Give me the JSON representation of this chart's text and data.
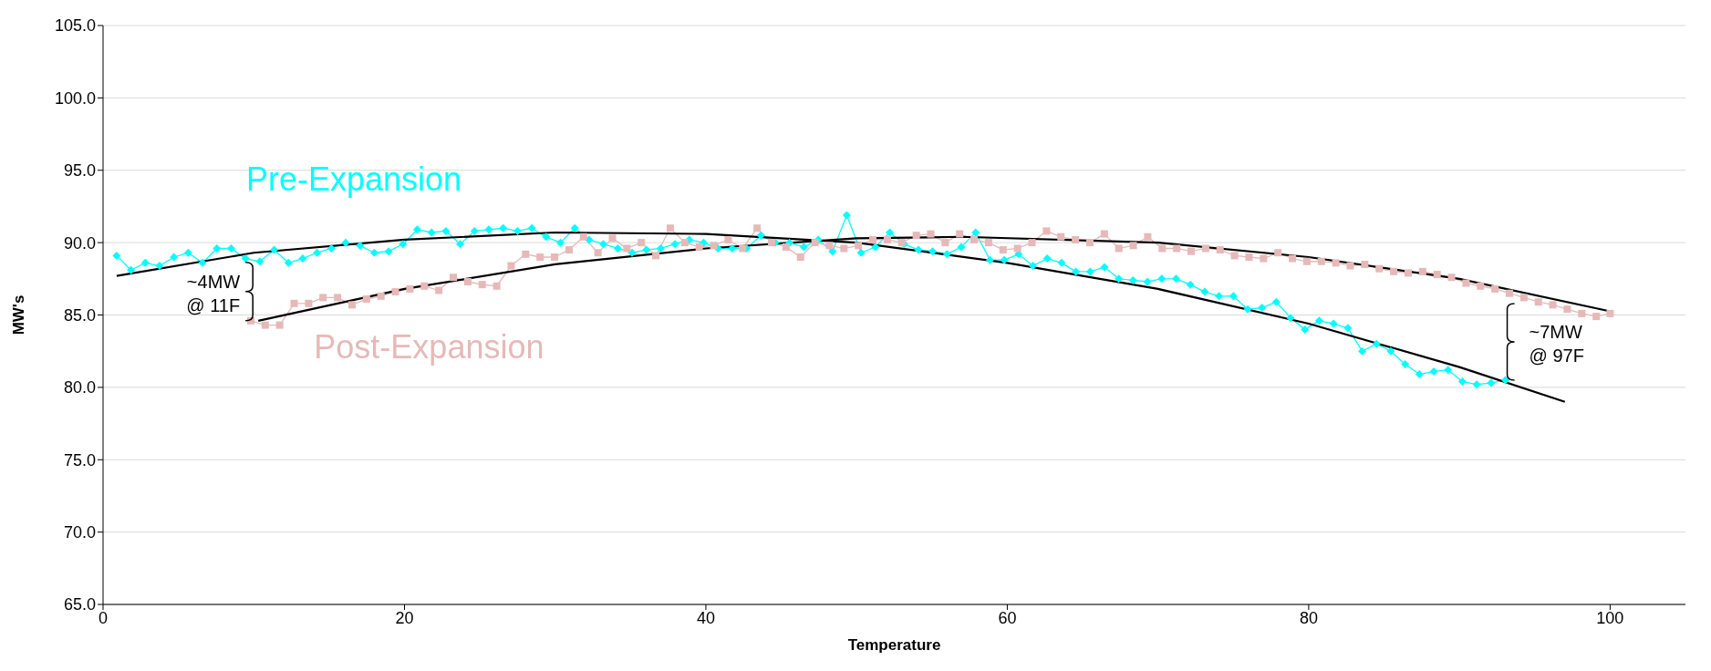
{
  "chart_data": {
    "type": "line",
    "xlabel": "Temperature",
    "ylabel": "MW's",
    "xlim": [
      0,
      105
    ],
    "xticks": [
      0,
      20,
      40,
      60,
      80,
      100
    ],
    "ylim": [
      65,
      105
    ],
    "yticks": [
      {
        "value": 65,
        "label": "65.0"
      },
      {
        "value": 70,
        "label": "70.0"
      },
      {
        "value": 75,
        "label": "75.0"
      },
      {
        "value": 80,
        "label": "80.0"
      },
      {
        "value": 85,
        "label": "85.0"
      },
      {
        "value": 90,
        "label": "90.0"
      },
      {
        "value": 95,
        "label": "95.0"
      },
      {
        "value": 100,
        "label": "100.0"
      },
      {
        "value": 105,
        "label": "105.0"
      }
    ],
    "grid": "y",
    "line_style": "solid",
    "annotations": [
      {
        "text": "~4MW @ 11F",
        "x": 10.3,
        "y": 84.6
      },
      {
        "text": "~7MW @ 97F",
        "x": 93.05,
        "y": 80.5
      }
    ],
    "series": [
      {
        "name": "Pre-Expansion",
        "color": "#00ffff",
        "marker": "diamond",
        "x": [
          0.9,
          1.85,
          2.8,
          3.75,
          4.7,
          5.65,
          6.6,
          7.55,
          8.5,
          9.45,
          10.4,
          11.35,
          12.3,
          13.25,
          14.2,
          15.15,
          16.1,
          17.05,
          18,
          18.95,
          19.9,
          20.85,
          21.8,
          22.75,
          23.7,
          24.65,
          25.6,
          26.55,
          27.5,
          28.45,
          29.4,
          30.35,
          31.3,
          32.25,
          33.2,
          34.15,
          35.1,
          36.05,
          37,
          37.95,
          38.9,
          39.85,
          40.8,
          41.75,
          42.7,
          43.65,
          44.6,
          45.55,
          46.5,
          47.45,
          48.4,
          49.35,
          50.3,
          51.25,
          52.2,
          53.15,
          54.1,
          55.05,
          56,
          56.95,
          57.9,
          58.85,
          59.8,
          60.75,
          61.7,
          62.65,
          63.6,
          64.55,
          65.5,
          66.45,
          67.4,
          68.35,
          69.3,
          70.25,
          71.2,
          72.15,
          73.1,
          74.05,
          75,
          75.95,
          76.9,
          77.85,
          78.8,
          79.75,
          80.7,
          81.65,
          82.6,
          83.55,
          84.5,
          85.45,
          86.4,
          87.35,
          88.3,
          89.25,
          90.2,
          91.15,
          92.1,
          93.05
        ],
        "values": [
          89.1,
          88.1,
          88.6,
          88.4,
          89.0,
          89.3,
          88.6,
          89.6,
          89.6,
          88.9,
          88.7,
          89.5,
          88.6,
          88.9,
          89.3,
          89.6,
          90.0,
          89.8,
          89.3,
          89.4,
          89.9,
          90.9,
          90.7,
          90.8,
          89.9,
          90.8,
          90.9,
          91.0,
          90.8,
          91.0,
          90.4,
          90.0,
          91.0,
          90.2,
          89.9,
          89.6,
          89.3,
          89.5,
          89.6,
          89.9,
          90.2,
          90.0,
          89.6,
          89.6,
          89.6,
          90.5,
          90.0,
          90.0,
          89.7,
          90.2,
          89.4,
          91.9,
          89.3,
          89.7,
          90.7,
          89.9,
          89.5,
          89.4,
          89.2,
          89.7,
          90.7,
          88.8,
          88.8,
          89.2,
          88.4,
          88.9,
          88.6,
          88.0,
          88.0,
          88.3,
          87.5,
          87.4,
          87.3,
          87.5,
          87.5,
          87.1,
          86.6,
          86.3,
          86.3,
          85.4,
          85.5,
          85.9,
          84.8,
          84.0,
          84.6,
          84.4,
          84.1,
          82.5,
          83.0,
          82.5,
          81.6,
          80.9,
          81.1,
          81.2,
          80.4,
          80.2,
          80.3,
          80.5
        ]
      },
      {
        "name": "Post-Expansion",
        "color": "#e6b9b8",
        "marker": "square",
        "x": [
          9.8,
          10.76,
          11.72,
          12.68,
          13.64,
          14.6,
          15.56,
          16.52,
          17.48,
          18.44,
          19.4,
          20.36,
          21.32,
          22.28,
          23.24,
          24.2,
          25.16,
          26.12,
          27.08,
          28.04,
          29,
          29.96,
          30.92,
          31.88,
          32.84,
          33.8,
          34.76,
          35.72,
          36.68,
          37.64,
          38.6,
          39.56,
          40.52,
          41.48,
          42.44,
          43.4,
          44.36,
          45.32,
          46.28,
          47.24,
          48.2,
          49.16,
          50.12,
          51.08,
          52.04,
          53,
          53.96,
          54.92,
          55.88,
          56.84,
          57.8,
          58.76,
          59.72,
          60.68,
          61.64,
          62.6,
          63.56,
          64.52,
          65.48,
          66.44,
          67.4,
          68.36,
          69.32,
          70.28,
          71.24,
          72.2,
          73.16,
          74.12,
          75.08,
          76.04,
          77,
          77.96,
          78.92,
          79.88,
          80.84,
          81.8,
          82.76,
          83.72,
          84.68,
          85.64,
          86.6,
          87.56,
          88.52,
          89.48,
          90.44,
          91.4,
          92.36,
          93.32,
          94.28,
          95.24,
          96.2,
          97.16,
          98.12,
          99.08,
          100
        ],
        "values": [
          84.6,
          84.3,
          84.3,
          85.8,
          85.8,
          86.2,
          86.2,
          85.7,
          86.1,
          86.3,
          86.6,
          86.8,
          87.0,
          86.7,
          87.6,
          87.3,
          87.1,
          87.0,
          88.4,
          89.2,
          89.0,
          89.0,
          89.5,
          90.4,
          89.3,
          90.3,
          89.6,
          90.0,
          89.1,
          91.0,
          90.0,
          89.7,
          89.8,
          90.2,
          89.6,
          91.0,
          90.0,
          89.7,
          89.0,
          90.0,
          89.8,
          89.6,
          89.8,
          90.2,
          90.2,
          90.0,
          90.5,
          90.6,
          90.0,
          90.6,
          90.2,
          90.0,
          89.5,
          89.6,
          90.0,
          90.8,
          90.4,
          90.2,
          90.0,
          90.6,
          89.6,
          89.8,
          90.4,
          89.6,
          89.6,
          89.4,
          89.6,
          89.5,
          89.1,
          89.0,
          88.9,
          89.3,
          88.9,
          88.7,
          88.7,
          88.6,
          88.4,
          88.5,
          88.2,
          88.0,
          87.9,
          88.0,
          87.8,
          87.6,
          87.2,
          87.0,
          86.8,
          86.5,
          86.2,
          85.9,
          85.7,
          85.4,
          85.1,
          84.9,
          85.1
        ]
      },
      {
        "color": "#000000",
        "marker": "none",
        "x": [
          0.9,
          10,
          20,
          30,
          40,
          50,
          60,
          70,
          80,
          90,
          97
        ],
        "values": [
          87.7,
          89.3,
          90.2,
          90.7,
          90.6,
          90.0,
          88.6,
          86.8,
          84.4,
          81.4,
          79.0
        ]
      },
      {
        "color": "#000000",
        "marker": "none",
        "x": [
          10.3,
          20,
          30,
          40,
          50,
          57,
          70,
          80,
          90,
          99.8
        ],
        "values": [
          84.6,
          86.8,
          88.5,
          89.6,
          90.3,
          90.4,
          90.0,
          89.0,
          87.5,
          85.3
        ]
      }
    ]
  }
}
